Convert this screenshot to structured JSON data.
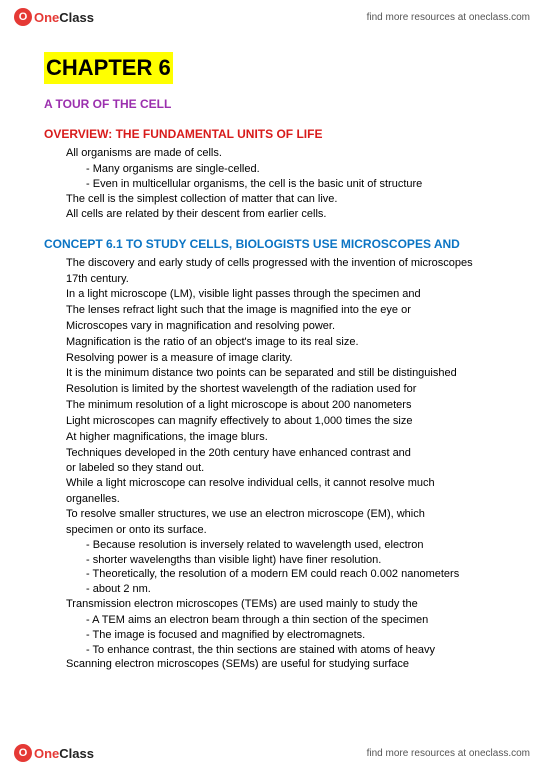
{
  "brand": {
    "icon_letter": "O",
    "name_one": "One",
    "name_rest": "Class",
    "tagline": "find more resources at oneclass.com"
  },
  "doc": {
    "chapter_title": "CHAPTER 6",
    "subtitle": "A TOUR OF THE CELL",
    "section1": {
      "heading": "OVERVIEW: THE FUNDAMENTAL UNITS OF LIFE",
      "items": [
        {
          "text": "All organisms are made of cells.",
          "sub": [
            "Many organisms are single-celled.",
            "Even in multicellular organisms, the cell is the basic unit of structure"
          ]
        },
        {
          "text": "The cell is the simplest collection of matter that can live."
        },
        {
          "text": "All cells are related by their descent from earlier cells."
        }
      ]
    },
    "section2": {
      "heading": "CONCEPT 6.1 TO STUDY CELLS, BIOLOGISTS USE MICROSCOPES AND",
      "items": [
        {
          "text": "The discovery and early study of cells progressed with the invention of microscopes",
          "cont": "17th century."
        },
        {
          "text": "In a light microscope (LM), visible light passes through the specimen and"
        },
        {
          "text": "The lenses refract light such that the image is magnified into the eye or"
        },
        {
          "text": "Microscopes vary in magnification and resolving power."
        },
        {
          "text": "Magnification is the ratio of an object's image to its real size."
        },
        {
          "text": "Resolving power is a measure of image clarity."
        },
        {
          "text": "It is the minimum distance two points can be separated and still be distinguished"
        },
        {
          "text": "Resolution is limited by the shortest wavelength of the radiation used for"
        },
        {
          "text": "The minimum resolution of a light microscope is about 200 nanometers"
        },
        {
          "text": "Light microscopes can magnify effectively to about 1,000 times the size"
        },
        {
          "text": "At higher magnifications, the image blurs."
        },
        {
          "text": "Techniques developed in the 20th century have enhanced contrast and",
          "cont": "or labeled so they stand out."
        },
        {
          "text": "While a light microscope can resolve individual cells, it cannot resolve much",
          "cont": "organelles."
        },
        {
          "text": "To resolve smaller structures, we use an electron microscope (EM), which",
          "cont": "specimen or onto its surface.",
          "sub": [
            "Because resolution is inversely related to wavelength used, electron",
            "shorter wavelengths than visible light) have finer resolution.",
            "Theoretically, the resolution of a modern EM could reach 0.002 nanometers",
            "about 2 nm."
          ]
        },
        {
          "text": "Transmission electron microscopes (TEMs) are used mainly to study the",
          "sub": [
            "A TEM aims an electron beam through a thin section of the specimen",
            "The image is focused and magnified by electromagnets.",
            "To enhance contrast, the thin sections are stained with atoms of heavy"
          ]
        },
        {
          "text": "Scanning electron microscopes (SEMs) are useful for studying surface"
        }
      ]
    }
  }
}
